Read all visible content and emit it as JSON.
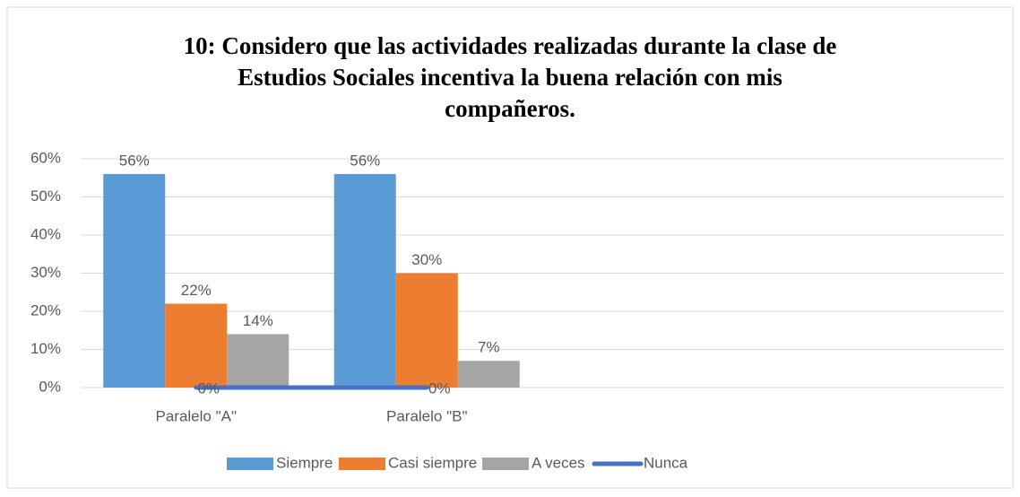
{
  "chart_data": {
    "type": "bar",
    "title": [
      "10: Considero que las actividades realizadas durante la clase de",
      "Estudios Sociales incentiva la buena relación con mis",
      "compañeros."
    ],
    "categories": [
      "Paralelo \"A\"",
      "Paralelo \"B\"",
      null,
      null
    ],
    "series": [
      {
        "name": "Siempre",
        "color": "#5b9bd5",
        "values": [
          56,
          56,
          null,
          null
        ],
        "value_labels": [
          "56%",
          "56%",
          null,
          null
        ]
      },
      {
        "name": "Casi siempre",
        "color": "#ed7d31",
        "values": [
          22,
          30,
          null,
          null
        ],
        "value_labels": [
          "22%",
          "30%",
          null,
          null
        ]
      },
      {
        "name": "A veces",
        "color": "#a5a5a5",
        "values": [
          14,
          7,
          null,
          null
        ],
        "value_labels": [
          "14%",
          "7%",
          null,
          null
        ]
      },
      {
        "name": "Nunca",
        "color": "#4472c4",
        "type": "line",
        "values": [
          0,
          0,
          null,
          null
        ],
        "value_labels": [
          "0%",
          "0%",
          null,
          null
        ]
      }
    ],
    "ylim": [
      0,
      60
    ],
    "yticks": [
      {
        "value": 0,
        "label": "0%"
      },
      {
        "value": 10,
        "label": "10%"
      },
      {
        "value": 20,
        "label": "20%"
      },
      {
        "value": 30,
        "label": "30%"
      },
      {
        "value": 40,
        "label": "40%"
      },
      {
        "value": 50,
        "label": "50%"
      },
      {
        "value": 60,
        "label": "60%"
      }
    ],
    "grid": true,
    "legend": "bottom"
  }
}
